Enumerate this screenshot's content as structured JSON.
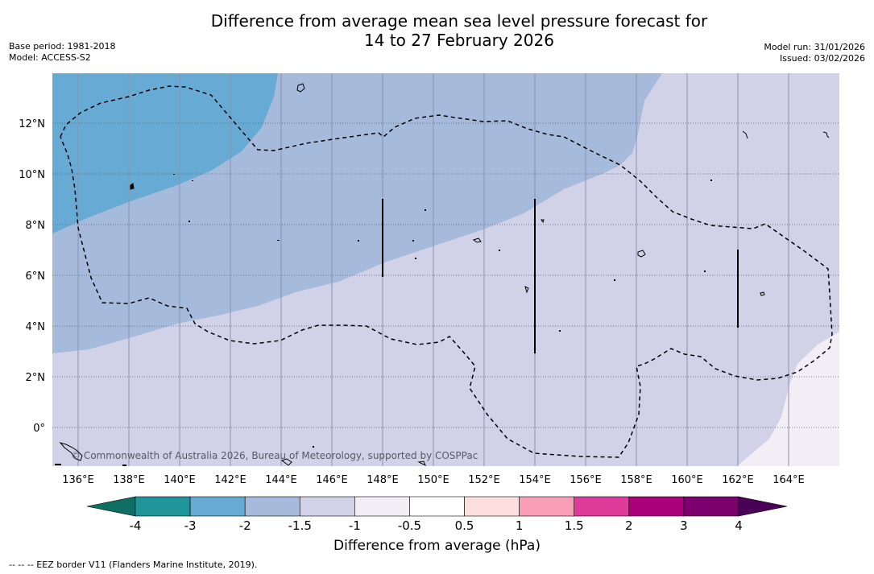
{
  "title": {
    "line1": "Difference from average mean sea level pressure forecast for",
    "line2": "14 to 27 February 2026"
  },
  "meta": {
    "base_period": "Base period: 1981-2018",
    "model": "Model: ACCESS-S2",
    "model_run": "Model run: 31/01/2026",
    "issued": "Issued: 03/02/2026"
  },
  "map": {
    "longitude_labels": [
      "136°E",
      "138°E",
      "140°E",
      "142°E",
      "144°E",
      "146°E",
      "148°E",
      "150°E",
      "152°E",
      "154°E",
      "156°E",
      "158°E",
      "160°E",
      "162°E",
      "164°E"
    ],
    "latitude_labels": [
      "12°N",
      "10°N",
      "8°N",
      "6°N",
      "4°N",
      "2°N",
      "0°"
    ],
    "copyright": "© Commonwealth of Australia 2026, Bureau of Meteorology, supported by COSPPac"
  },
  "colorbar": {
    "title": "Difference from average (hPa)",
    "tick_labels": [
      "-4",
      "-3",
      "-2",
      "-1.5",
      "-1",
      "-0.5",
      "0.5",
      "1",
      "1.5",
      "2",
      "3",
      "4"
    ],
    "colors": {
      "below": "#0e6f62",
      "bins": [
        "#20969a",
        "#67aad3",
        "#a6badb",
        "#d1d2e7",
        "#f3eef6",
        "#ffffff",
        "#fde0dd",
        "#f99fb5",
        "#df3b9a",
        "#ab007a",
        "#7c006d"
      ],
      "above": "#4b0058"
    }
  },
  "footnote": "--  --  -- EEZ border V11 (Flanders Marine Institute, 2019)."
}
